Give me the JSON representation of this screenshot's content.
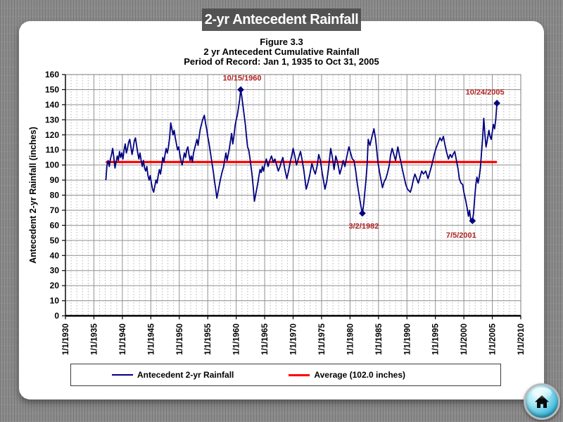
{
  "banner": {
    "title": "2-yr Antecedent Rainfall"
  },
  "chart_data": {
    "type": "line",
    "title": "Figure 3.3",
    "subtitle": "2 yr Antecedent Cumulative Rainfall",
    "period_of_record": "Period of Record:  Jan 1, 1935 to Oct 31, 2005",
    "xlabel": "",
    "ylabel": "Antecedent 2-yr Rainfall (inches)",
    "xlim": [
      1930,
      2010
    ],
    "ylim": [
      0,
      160
    ],
    "y_tick_step": 10,
    "y_tick_labels": [
      "0",
      "10",
      "20",
      "30",
      "40",
      "50",
      "60",
      "70",
      "80",
      "90",
      "100",
      "110",
      "120",
      "130",
      "140",
      "150",
      "160"
    ],
    "x_tick_step_years": 5,
    "x_minor_step_years": 1,
    "x_tick_labels": [
      "1/1/1930",
      "1/1/1935",
      "1/1/1940",
      "1/1/1945",
      "1/1/1950",
      "1/1/1955",
      "1/1/1960",
      "1/1/1965",
      "1/1/1970",
      "1/1/1975",
      "1/1/1980",
      "1/1/1985",
      "1/1/1990",
      "1/1/1995",
      "1/1/2000",
      "1/1/2005",
      "1/1/2010"
    ],
    "grid": "major-solid, minor-vertical-dashed",
    "legend_position": "bottom",
    "colors": {
      "series": "#000080",
      "average": "#ff0000",
      "annotation": "#b22222",
      "grid_major": "#919191",
      "grid_minor": "#b5b5b5",
      "axis": "#000000"
    },
    "series": [
      {
        "name": "Antecedent 2-yr Rainfall",
        "color": "#000080",
        "points": [
          [
            1937.1,
            90
          ],
          [
            1937.3,
            100
          ],
          [
            1937.5,
            103
          ],
          [
            1937.7,
            99
          ],
          [
            1937.9,
            104
          ],
          [
            1938.1,
            107
          ],
          [
            1938.3,
            111
          ],
          [
            1938.5,
            105
          ],
          [
            1938.7,
            98
          ],
          [
            1938.9,
            102
          ],
          [
            1939.1,
            106
          ],
          [
            1939.3,
            103
          ],
          [
            1939.5,
            109
          ],
          [
            1939.7,
            105
          ],
          [
            1939.9,
            108
          ],
          [
            1940.1,
            104
          ],
          [
            1940.3,
            110
          ],
          [
            1940.5,
            114
          ],
          [
            1940.7,
            108
          ],
          [
            1940.9,
            111
          ],
          [
            1941.1,
            115
          ],
          [
            1941.3,
            117
          ],
          [
            1941.5,
            112
          ],
          [
            1941.7,
            107
          ],
          [
            1941.9,
            111
          ],
          [
            1942.1,
            116
          ],
          [
            1942.3,
            118
          ],
          [
            1942.5,
            113
          ],
          [
            1942.7,
            108
          ],
          [
            1942.9,
            104
          ],
          [
            1943.1,
            108
          ],
          [
            1943.3,
            103
          ],
          [
            1943.5,
            99
          ],
          [
            1943.7,
            103
          ],
          [
            1943.9,
            98
          ],
          [
            1944.1,
            96
          ],
          [
            1944.3,
            99
          ],
          [
            1944.5,
            93
          ],
          [
            1944.7,
            90
          ],
          [
            1944.9,
            93
          ],
          [
            1945.1,
            88
          ],
          [
            1945.3,
            84
          ],
          [
            1945.5,
            82
          ],
          [
            1945.7,
            86
          ],
          [
            1945.9,
            90
          ],
          [
            1946.1,
            88
          ],
          [
            1946.3,
            93
          ],
          [
            1946.5,
            97
          ],
          [
            1946.7,
            94
          ],
          [
            1946.9,
            99
          ],
          [
            1947.1,
            105
          ],
          [
            1947.3,
            102
          ],
          [
            1947.5,
            107
          ],
          [
            1947.7,
            111
          ],
          [
            1947.9,
            108
          ],
          [
            1948.1,
            112
          ],
          [
            1948.3,
            118
          ],
          [
            1948.5,
            128
          ],
          [
            1948.7,
            124
          ],
          [
            1948.9,
            120
          ],
          [
            1949.1,
            123
          ],
          [
            1949.3,
            118
          ],
          [
            1949.5,
            114
          ],
          [
            1949.7,
            110
          ],
          [
            1949.9,
            112
          ],
          [
            1950.1,
            107
          ],
          [
            1950.3,
            103
          ],
          [
            1950.5,
            100
          ],
          [
            1950.7,
            104
          ],
          [
            1950.9,
            108
          ],
          [
            1951.1,
            105
          ],
          [
            1951.3,
            110
          ],
          [
            1951.5,
            112
          ],
          [
            1951.7,
            107
          ],
          [
            1951.9,
            103
          ],
          [
            1952.1,
            106
          ],
          [
            1952.3,
            102
          ],
          [
            1952.5,
            108
          ],
          [
            1952.7,
            111
          ],
          [
            1952.9,
            114
          ],
          [
            1953.1,
            117
          ],
          [
            1953.3,
            113
          ],
          [
            1953.5,
            119
          ],
          [
            1953.7,
            124
          ],
          [
            1953.9,
            127
          ],
          [
            1954.1,
            130
          ],
          [
            1954.4,
            133
          ],
          [
            1954.6,
            128
          ],
          [
            1954.8,
            124
          ],
          [
            1955.0,
            119
          ],
          [
            1955.2,
            115
          ],
          [
            1955.4,
            110
          ],
          [
            1955.6,
            105
          ],
          [
            1955.8,
            100
          ],
          [
            1956.0,
            95
          ],
          [
            1956.2,
            89
          ],
          [
            1956.4,
            84
          ],
          [
            1956.6,
            78
          ],
          [
            1956.8,
            82
          ],
          [
            1957.0,
            86
          ],
          [
            1957.2,
            90
          ],
          [
            1957.5,
            95
          ],
          [
            1957.8,
            99
          ],
          [
            1958.0,
            104
          ],
          [
            1958.2,
            108
          ],
          [
            1958.4,
            103
          ],
          [
            1958.6,
            107
          ],
          [
            1958.8,
            111
          ],
          [
            1959.0,
            116
          ],
          [
            1959.2,
            121
          ],
          [
            1959.4,
            114
          ],
          [
            1959.6,
            119
          ],
          [
            1959.8,
            126
          ],
          [
            1960.0,
            130
          ],
          [
            1960.2,
            133
          ],
          [
            1960.4,
            138
          ],
          [
            1960.6,
            143
          ],
          [
            1960.79,
            150
          ],
          [
            1961.0,
            145
          ],
          [
            1961.2,
            139
          ],
          [
            1961.4,
            133
          ],
          [
            1961.6,
            127
          ],
          [
            1961.8,
            119
          ],
          [
            1962.0,
            112
          ],
          [
            1962.2,
            110
          ],
          [
            1962.4,
            105
          ],
          [
            1962.6,
            99
          ],
          [
            1962.8,
            93
          ],
          [
            1963.0,
            85
          ],
          [
            1963.2,
            76
          ],
          [
            1963.4,
            80
          ],
          [
            1963.6,
            84
          ],
          [
            1963.8,
            88
          ],
          [
            1964.0,
            93
          ],
          [
            1964.2,
            97
          ],
          [
            1964.4,
            95
          ],
          [
            1964.6,
            99
          ],
          [
            1964.8,
            96
          ],
          [
            1965.0,
            100
          ],
          [
            1965.3,
            104
          ],
          [
            1965.6,
            99
          ],
          [
            1965.9,
            103
          ],
          [
            1966.2,
            106
          ],
          [
            1966.5,
            102
          ],
          [
            1966.8,
            104
          ],
          [
            1967.1,
            100
          ],
          [
            1967.4,
            96
          ],
          [
            1967.7,
            99
          ],
          [
            1968.0,
            103
          ],
          [
            1968.2,
            105
          ],
          [
            1968.5,
            98
          ],
          [
            1968.9,
            91
          ],
          [
            1969.2,
            96
          ],
          [
            1969.5,
            102
          ],
          [
            1969.8,
            107
          ],
          [
            1970.0,
            111
          ],
          [
            1970.3,
            106
          ],
          [
            1970.6,
            100
          ],
          [
            1970.9,
            104
          ],
          [
            1971.3,
            109
          ],
          [
            1971.6,
            103
          ],
          [
            1971.9,
            96
          ],
          [
            1972.3,
            84
          ],
          [
            1972.6,
            88
          ],
          [
            1972.9,
            93
          ],
          [
            1973.3,
            101
          ],
          [
            1973.6,
            97
          ],
          [
            1973.9,
            94
          ],
          [
            1974.2,
            99
          ],
          [
            1974.5,
            107
          ],
          [
            1974.8,
            103
          ],
          [
            1975.1,
            95
          ],
          [
            1975.6,
            84
          ],
          [
            1975.9,
            89
          ],
          [
            1976.2,
            97
          ],
          [
            1976.6,
            111
          ],
          [
            1976.9,
            105
          ],
          [
            1977.2,
            97
          ],
          [
            1977.5,
            106
          ],
          [
            1977.8,
            102
          ],
          [
            1978.2,
            94
          ],
          [
            1978.5,
            98
          ],
          [
            1978.8,
            103
          ],
          [
            1979.1,
            99
          ],
          [
            1979.4,
            105
          ],
          [
            1979.8,
            112
          ],
          [
            1980.1,
            108
          ],
          [
            1980.4,
            104
          ],
          [
            1980.7,
            103
          ],
          [
            1981.0,
            96
          ],
          [
            1981.3,
            87
          ],
          [
            1981.6,
            80
          ],
          [
            1981.9,
            73
          ],
          [
            1982.17,
            68
          ],
          [
            1982.4,
            74
          ],
          [
            1982.6,
            82
          ],
          [
            1982.8,
            90
          ],
          [
            1983.0,
            100
          ],
          [
            1983.2,
            117
          ],
          [
            1983.5,
            113
          ],
          [
            1983.8,
            118
          ],
          [
            1984.0,
            121
          ],
          [
            1984.2,
            124
          ],
          [
            1984.5,
            117
          ],
          [
            1984.9,
            102
          ],
          [
            1985.2,
            95
          ],
          [
            1985.7,
            85
          ],
          [
            1986.0,
            89
          ],
          [
            1986.3,
            91
          ],
          [
            1986.6,
            95
          ],
          [
            1986.9,
            100
          ],
          [
            1987.1,
            106
          ],
          [
            1987.4,
            111
          ],
          [
            1987.7,
            107
          ],
          [
            1988.0,
            103
          ],
          [
            1988.4,
            112
          ],
          [
            1988.7,
            106
          ],
          [
            1989.0,
            101
          ],
          [
            1989.2,
            97
          ],
          [
            1989.5,
            92
          ],
          [
            1989.8,
            87
          ],
          [
            1990.1,
            84
          ],
          [
            1990.6,
            82
          ],
          [
            1990.9,
            86
          ],
          [
            1991.1,
            90
          ],
          [
            1991.4,
            94
          ],
          [
            1991.7,
            91
          ],
          [
            1992.0,
            88
          ],
          [
            1992.3,
            92
          ],
          [
            1992.6,
            96
          ],
          [
            1992.9,
            94
          ],
          [
            1993.3,
            96
          ],
          [
            1993.7,
            91
          ],
          [
            1994.0,
            95
          ],
          [
            1994.3,
            99
          ],
          [
            1994.8,
            107
          ],
          [
            1995.1,
            111
          ],
          [
            1995.5,
            115
          ],
          [
            1995.8,
            118
          ],
          [
            1996.1,
            116
          ],
          [
            1996.4,
            119
          ],
          [
            1996.7,
            113
          ],
          [
            1997.0,
            108
          ],
          [
            1997.3,
            104
          ],
          [
            1997.6,
            107
          ],
          [
            1997.9,
            105
          ],
          [
            1998.1,
            107
          ],
          [
            1998.4,
            109
          ],
          [
            1998.7,
            103
          ],
          [
            1999.0,
            97
          ],
          [
            1999.2,
            91
          ],
          [
            1999.5,
            88
          ],
          [
            1999.8,
            87
          ],
          [
            2000.0,
            82
          ],
          [
            2000.3,
            77
          ],
          [
            2000.6,
            71
          ],
          [
            2000.8,
            66
          ],
          [
            2001.0,
            70
          ],
          [
            2001.2,
            64
          ],
          [
            2001.51,
            63
          ],
          [
            2001.7,
            68
          ],
          [
            2001.9,
            78
          ],
          [
            2002.1,
            87
          ],
          [
            2002.3,
            92
          ],
          [
            2002.5,
            88
          ],
          [
            2002.7,
            92
          ],
          [
            2002.9,
            98
          ],
          [
            2003.1,
            108
          ],
          [
            2003.3,
            118
          ],
          [
            2003.5,
            131
          ],
          [
            2003.7,
            120
          ],
          [
            2003.9,
            112
          ],
          [
            2004.1,
            116
          ],
          [
            2004.4,
            123
          ],
          [
            2004.6,
            119
          ],
          [
            2004.8,
            117
          ],
          [
            2005.0,
            122
          ],
          [
            2005.2,
            127
          ],
          [
            2005.4,
            124
          ],
          [
            2005.6,
            130
          ],
          [
            2005.81,
            141
          ]
        ]
      }
    ],
    "average_line": {
      "name": "Average (102.0 inches)",
      "color": "#ff0000",
      "value": 102.0,
      "x_start": 1937.1,
      "x_end": 2005.81
    },
    "annotations": [
      {
        "label": "10/15/1960",
        "year": 1960.79,
        "value": 150,
        "text_dx": 2,
        "text_dy": -13
      },
      {
        "label": "3/2/1982",
        "year": 1982.17,
        "value": 68,
        "text_dx": 2,
        "text_dy": 22
      },
      {
        "label": "7/5/2001",
        "year": 2001.51,
        "value": 63,
        "text_dx": -16,
        "text_dy": 24
      },
      {
        "label": "10/24/2005",
        "year": 2005.81,
        "value": 141,
        "text_dx": -17,
        "text_dy": -12
      }
    ]
  },
  "home_button": {
    "icon": "house"
  }
}
